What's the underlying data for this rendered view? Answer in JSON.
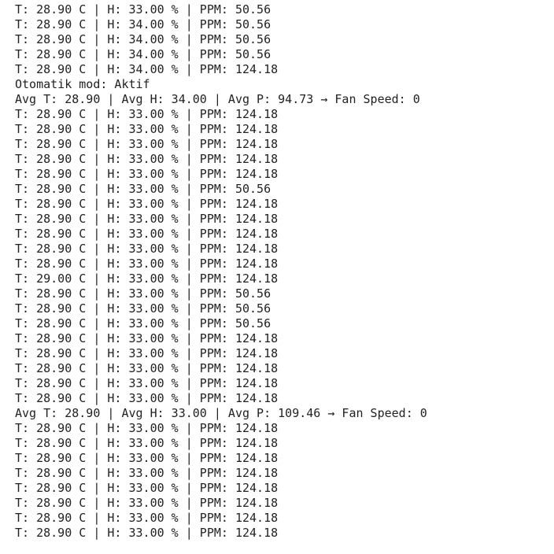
{
  "console": {
    "lines": [
      "T: 28.90 C | H: 33.00 % | PPM: 50.56",
      "T: 28.90 C | H: 34.00 % | PPM: 50.56",
      "T: 28.90 C | H: 34.00 % | PPM: 50.56",
      "T: 28.90 C | H: 34.00 % | PPM: 50.56",
      "T: 28.90 C | H: 34.00 % | PPM: 124.18",
      "Otomatik mod: Aktif",
      "Avg T: 28.90 | Avg H: 34.00 | Avg P: 94.73 → Fan Speed: 0",
      "T: 28.90 C | H: 33.00 % | PPM: 124.18",
      "T: 28.90 C | H: 33.00 % | PPM: 124.18",
      "T: 28.90 C | H: 33.00 % | PPM: 124.18",
      "T: 28.90 C | H: 33.00 % | PPM: 124.18",
      "T: 28.90 C | H: 33.00 % | PPM: 124.18",
      "T: 28.90 C | H: 33.00 % | PPM: 50.56",
      "T: 28.90 C | H: 33.00 % | PPM: 124.18",
      "T: 28.90 C | H: 33.00 % | PPM: 124.18",
      "T: 28.90 C | H: 33.00 % | PPM: 124.18",
      "T: 28.90 C | H: 33.00 % | PPM: 124.18",
      "T: 28.90 C | H: 33.00 % | PPM: 124.18",
      "T: 29.00 C | H: 33.00 % | PPM: 124.18",
      "T: 28.90 C | H: 33.00 % | PPM: 50.56",
      "T: 28.90 C | H: 33.00 % | PPM: 50.56",
      "T: 28.90 C | H: 33.00 % | PPM: 50.56",
      "T: 28.90 C | H: 33.00 % | PPM: 124.18",
      "T: 28.90 C | H: 33.00 % | PPM: 124.18",
      "T: 28.90 C | H: 33.00 % | PPM: 124.18",
      "T: 28.90 C | H: 33.00 % | PPM: 124.18",
      "T: 28.90 C | H: 33.00 % | PPM: 124.18",
      "Avg T: 28.90 | Avg H: 33.00 | Avg P: 109.46 → Fan Speed: 0",
      "T: 28.90 C | H: 33.00 % | PPM: 124.18",
      "T: 28.90 C | H: 33.00 % | PPM: 124.18",
      "T: 28.90 C | H: 33.00 % | PPM: 124.18",
      "T: 28.90 C | H: 33.00 % | PPM: 124.18",
      "T: 28.90 C | H: 33.00 % | PPM: 124.18",
      "T: 28.90 C | H: 33.00 % | PPM: 124.18",
      "T: 28.90 C | H: 33.00 % | PPM: 124.18",
      "T: 28.90 C | H: 33.00 % | PPM: 124.18"
    ]
  }
}
